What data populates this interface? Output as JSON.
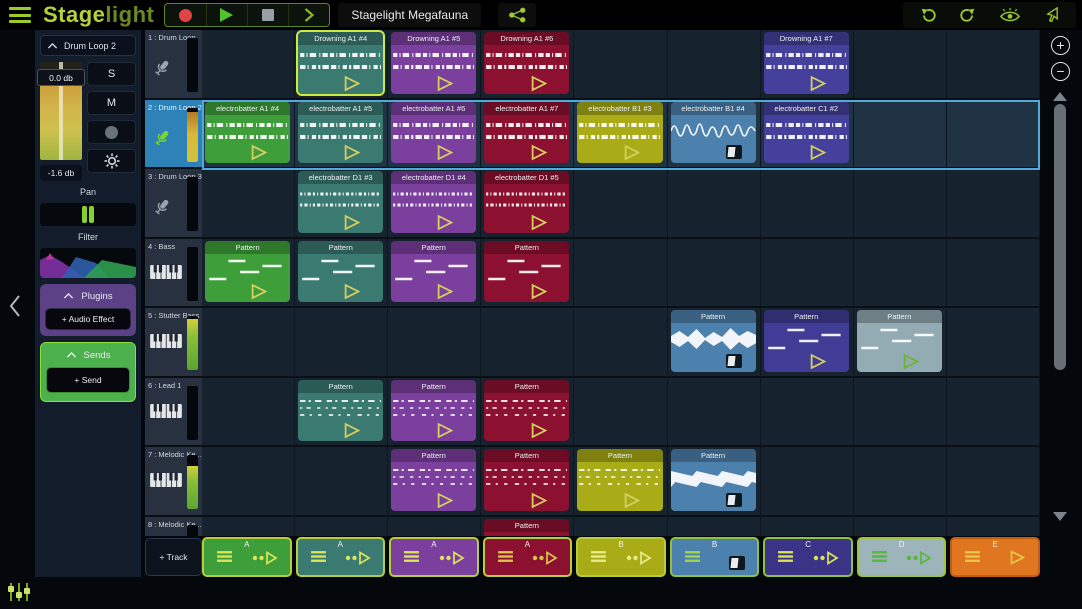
{
  "topbar": {
    "logo_stage": "Stage",
    "logo_light": "light",
    "project_title": "Stagelight Megafauna",
    "icons": [
      "menu-icon",
      "record-icon",
      "play-icon",
      "stop-icon",
      "skip-forward-icon",
      "share-icon",
      "undo-icon",
      "redo-icon",
      "eye-icon",
      "cursor-icon"
    ]
  },
  "mixer": {
    "channel_name": "Drum Loop 2",
    "volume_label": "0.0 db",
    "fader_readout": "-1.6 db",
    "solo_label": "S",
    "mute_label": "M",
    "pan_label": "Pan",
    "filter_label": "Filter",
    "plugins_label": "Plugins",
    "add_audio_effect_label": "+ Audio Effect",
    "sends_label": "Sends",
    "add_send_label": "+ Send"
  },
  "track_panel": {
    "add_track_label": "+ Track",
    "tracks": [
      {
        "label": "1 : Drum Loop",
        "icon": "mic",
        "selected": false,
        "meter": 0
      },
      {
        "label": "2 : Drum Loop 2",
        "icon": "mic",
        "selected": true,
        "meter": 0.92,
        "meter_color": "orange"
      },
      {
        "label": "3 : Drum Loop 3",
        "icon": "mic",
        "selected": false,
        "meter": 0
      },
      {
        "label": "4 : Bass",
        "icon": "piano",
        "selected": false,
        "meter": 0
      },
      {
        "label": "5 : Stutter Bass",
        "icon": "piano",
        "selected": false,
        "meter": 0.95,
        "meter_color": "green"
      },
      {
        "label": "6 : Lead 1",
        "icon": "piano",
        "selected": false,
        "meter": 0
      },
      {
        "label": "7 : Melodic Ke...",
        "icon": "piano",
        "selected": false,
        "meter": 0.8,
        "meter_color": "green"
      },
      {
        "label": "8 : Melodic Ke...",
        "icon": "piano",
        "selected": false,
        "meter": 0
      }
    ]
  },
  "grid": {
    "clips": [
      {
        "row": 1,
        "col": 2,
        "name": "Drowning A1 #4",
        "color": "#3a7a71",
        "graphic": "drum",
        "button": "play",
        "selected": true
      },
      {
        "row": 1,
        "col": 3,
        "name": "Drowning A1 #5",
        "color": "#7b3f9e",
        "graphic": "drum",
        "button": "play"
      },
      {
        "row": 1,
        "col": 4,
        "name": "Drowning A1 #6",
        "color": "#8c1030",
        "graphic": "drum",
        "button": "play"
      },
      {
        "row": 1,
        "col": 7,
        "name": "Drowning A1 #7",
        "color": "#44409c",
        "graphic": "drum",
        "button": "play"
      },
      {
        "row": 2,
        "col": 1,
        "name": "electrobatter A1 #4",
        "color": "#3e9f3a",
        "graphic": "drum",
        "button": "play"
      },
      {
        "row": 2,
        "col": 2,
        "name": "electrobatter A1 #5",
        "color": "#3a7a71",
        "graphic": "drum",
        "button": "play"
      },
      {
        "row": 2,
        "col": 3,
        "name": "electrobatter A1 #6",
        "color": "#7b3f9e",
        "graphic": "drum",
        "button": "play"
      },
      {
        "row": 2,
        "col": 4,
        "name": "electrobatter A1 #7",
        "color": "#8c1030",
        "graphic": "drum",
        "button": "play"
      },
      {
        "row": 2,
        "col": 5,
        "name": "electrobatter B1 #3",
        "color": "#a9ac16",
        "graphic": "drum",
        "button": "play"
      },
      {
        "row": 2,
        "col": 6,
        "name": "electrobatter B1 #4",
        "color": "#4d81ad",
        "graphic": "wave-line",
        "button": "stop"
      },
      {
        "row": 2,
        "col": 7,
        "name": "electrobatter C1 #2",
        "color": "#44409c",
        "graphic": "drum",
        "button": "play"
      },
      {
        "row": 3,
        "col": 2,
        "name": "electrobatter D1 #3",
        "color": "#3a7a71",
        "graphic": "drum-dense",
        "button": "play"
      },
      {
        "row": 3,
        "col": 3,
        "name": "electrobatter D1 #4",
        "color": "#7b3f9e",
        "graphic": "drum-dense",
        "button": "play"
      },
      {
        "row": 3,
        "col": 4,
        "name": "electrobatter D1 #5",
        "color": "#8c1030",
        "graphic": "drum-dense",
        "button": "play"
      },
      {
        "row": 4,
        "col": 1,
        "name": "Pattern",
        "color": "#3e9f3a",
        "graphic": "midi-long",
        "button": "play"
      },
      {
        "row": 4,
        "col": 2,
        "name": "Pattern",
        "color": "#3a7a71",
        "graphic": "midi-long",
        "button": "play"
      },
      {
        "row": 4,
        "col": 3,
        "name": "Pattern",
        "color": "#7b3f9e",
        "graphic": "midi-long",
        "button": "play"
      },
      {
        "row": 4,
        "col": 4,
        "name": "Pattern",
        "color": "#8c1030",
        "graphic": "midi-long",
        "button": "play"
      },
      {
        "row": 5,
        "col": 6,
        "name": "Pattern",
        "color": "#4d81ad",
        "graphic": "wave-fill",
        "button": "stop"
      },
      {
        "row": 5,
        "col": 7,
        "name": "Pattern",
        "color": "#413c96",
        "graphic": "midi-long",
        "button": "play"
      },
      {
        "row": 5,
        "col": 8,
        "name": "Pattern",
        "color": "#93abb3",
        "graphic": "midi-long",
        "button": "play",
        "accent": "#6cb433"
      },
      {
        "row": 6,
        "col": 2,
        "name": "Pattern",
        "color": "#3a7a71",
        "graphic": "midi-dash",
        "button": "play"
      },
      {
        "row": 6,
        "col": 3,
        "name": "Pattern",
        "color": "#7b3f9e",
        "graphic": "midi-dash",
        "button": "play"
      },
      {
        "row": 6,
        "col": 4,
        "name": "Pattern",
        "color": "#8c1030",
        "graphic": "midi-dash",
        "button": "play"
      },
      {
        "row": 7,
        "col": 3,
        "name": "Pattern",
        "color": "#7b3f9e",
        "graphic": "midi-dash",
        "button": "play"
      },
      {
        "row": 7,
        "col": 4,
        "name": "Pattern",
        "color": "#8c1030",
        "graphic": "midi-dash",
        "button": "play"
      },
      {
        "row": 7,
        "col": 5,
        "name": "Pattern",
        "color": "#a9ac16",
        "graphic": "midi-dash",
        "button": "play"
      },
      {
        "row": 7,
        "col": 6,
        "name": "Pattern",
        "color": "#4d81ad",
        "graphic": "noise",
        "button": "stop"
      },
      {
        "row": 8,
        "col": 4,
        "name": "Pattern",
        "color": "#8c1030",
        "graphic": "none",
        "button": "none"
      }
    ]
  },
  "scenes": [
    {
      "label": "A",
      "color": "#3e9f3a",
      "icon": "dots-play",
      "icon_color": "#dce45c",
      "border": "#b9cc3e"
    },
    {
      "label": "A",
      "color": "#3a7a71",
      "icon": "dots-play",
      "icon_color": "#dce45c",
      "border": "#b9cc3e"
    },
    {
      "label": "A",
      "color": "#7b3f9e",
      "icon": "dots-play",
      "icon_color": "#dce45c",
      "border": "#b9cc3e"
    },
    {
      "label": "A",
      "color": "#8c1030",
      "icon": "dots-play",
      "icon_color": "#dcc44a",
      "border": "#b9cc3e"
    },
    {
      "label": "B",
      "color": "#a9ac16",
      "icon": "dots-play",
      "icon_color": "#e8ec8a",
      "border": "#b9cc3e"
    },
    {
      "label": "B",
      "color": "#4d81ad",
      "icon": "stop",
      "icon_color": "#a6d44e",
      "border": "#8cc43e"
    },
    {
      "label": "C",
      "color": "#3a3386",
      "icon": "dots-play",
      "icon_color": "#dce45c",
      "border": "#8cc43e"
    },
    {
      "label": "D",
      "color": "#9db4ba",
      "icon": "dots-play",
      "icon_color": "#5cb53c",
      "border": "#9cc43e"
    },
    {
      "label": "E",
      "color": "#e0761f",
      "icon": "play",
      "icon_color": "#e8c84a",
      "border": "#c05f14"
    }
  ],
  "colors": {
    "accent_green": "#9ccc2a",
    "selected_clip_border": "#cdeb3f",
    "selected_row_border": "#4fa9d9",
    "selected_track_bg": "#2d83b8"
  }
}
